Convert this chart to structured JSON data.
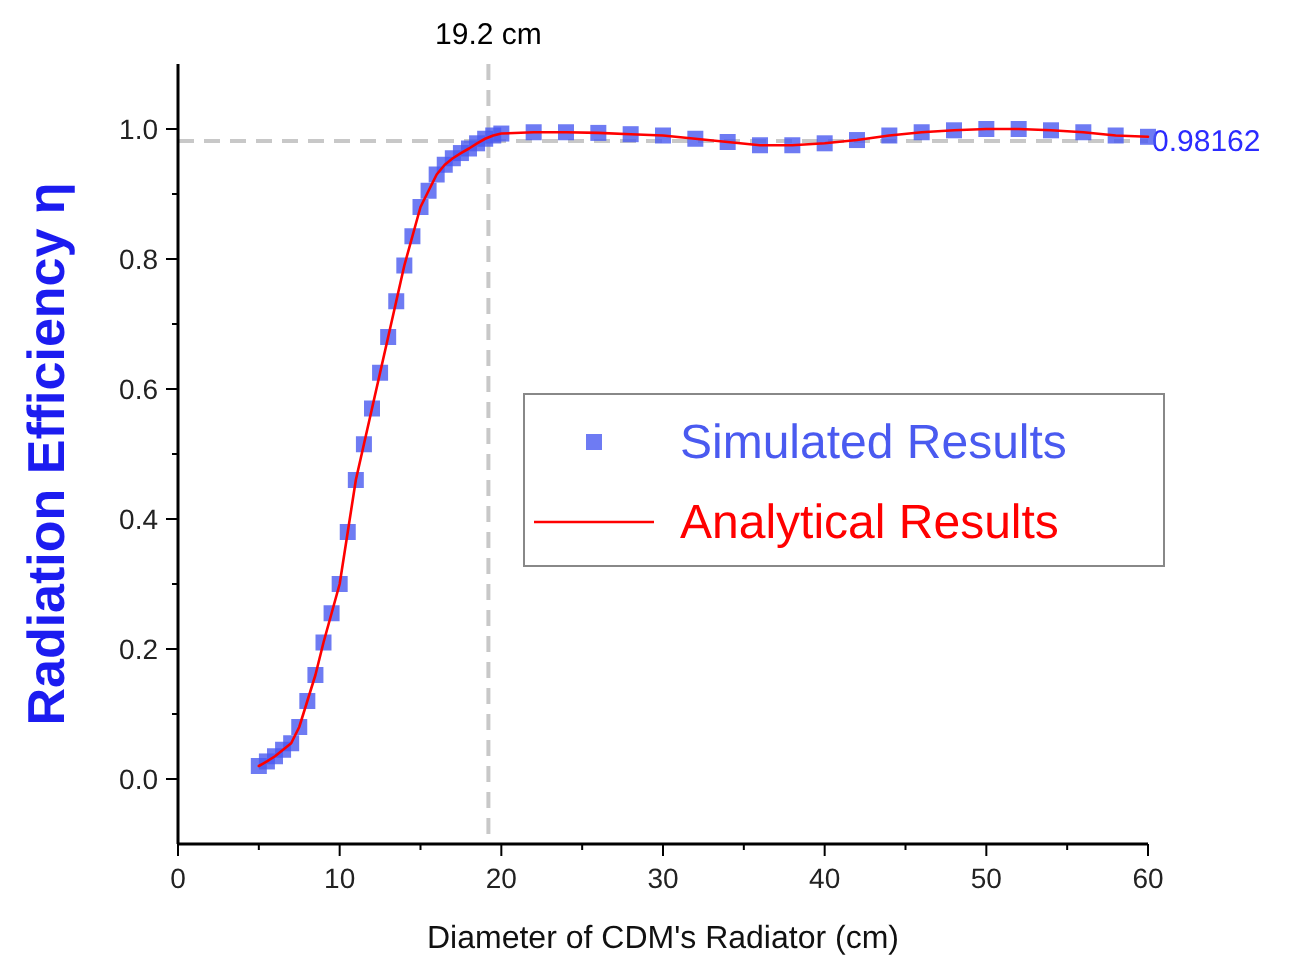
{
  "chart_data": {
    "type": "line",
    "xlabel": "Diameter of CDM's Radiator (cm)",
    "ylabel": "Radiation Efficiency η",
    "xlim": [
      0,
      60
    ],
    "ylim": [
      -0.1,
      1.1
    ],
    "xticks": [
      0,
      {
        "value": 5,
        "label": null
      },
      10,
      {
        "value": 15,
        "label": null
      },
      20,
      {
        "value": 25,
        "label": null
      },
      30,
      {
        "value": 35,
        "label": null
      },
      40,
      {
        "value": 45,
        "label": null
      },
      50,
      {
        "value": 55,
        "label": null
      },
      60
    ],
    "yticks": [
      {
        "value": 0,
        "label": "0.0"
      },
      {
        "value": 0.1,
        "label": null
      },
      {
        "value": 0.2,
        "label": "0.2"
      },
      {
        "value": 0.3,
        "label": null
      },
      {
        "value": 0.4,
        "label": "0.4"
      },
      {
        "value": 0.5,
        "label": null
      },
      {
        "value": 0.6,
        "label": "0.6"
      },
      {
        "value": 0.7,
        "label": null
      },
      {
        "value": 0.8,
        "label": "0.8"
      },
      {
        "value": 0.9,
        "label": null
      },
      {
        "value": 1,
        "label": "1.0"
      }
    ],
    "x": [
      5,
      5.5,
      6,
      6.5,
      7,
      7.5,
      8,
      8.5,
      9,
      9.5,
      10,
      10.5,
      11,
      11.5,
      12,
      12.5,
      13,
      13.5,
      14,
      14.5,
      15,
      15.5,
      16,
      16.5,
      17,
      17.5,
      18,
      18.5,
      19,
      19.5,
      20,
      22,
      24,
      26,
      28,
      30,
      32,
      34,
      36,
      38,
      40,
      42,
      44,
      46,
      48,
      50,
      52,
      54,
      56,
      58,
      60
    ],
    "series": [
      {
        "name": "Simulated Results",
        "type": "scatter",
        "marker": "square",
        "color": "#4a5af0",
        "values": [
          0.02,
          0.027,
          0.035,
          0.045,
          0.055,
          0.08,
          0.12,
          0.16,
          0.21,
          0.255,
          0.3,
          0.38,
          0.46,
          0.515,
          0.57,
          0.625,
          0.68,
          0.735,
          0.79,
          0.835,
          0.88,
          0.905,
          0.93,
          0.945,
          0.955,
          0.963,
          0.97,
          0.978,
          0.985,
          0.99,
          0.993,
          0.995,
          0.995,
          0.994,
          0.992,
          0.99,
          0.985,
          0.98,
          0.975,
          0.975,
          0.978,
          0.983,
          0.99,
          0.995,
          0.998,
          1,
          1,
          0.998,
          0.995,
          0.99,
          0.988
        ]
      },
      {
        "name": "Analytical Results",
        "color": "#ff0000",
        "values": [
          0.02,
          0.027,
          0.035,
          0.045,
          0.055,
          0.08,
          0.12,
          0.16,
          0.21,
          0.255,
          0.3,
          0.38,
          0.46,
          0.515,
          0.57,
          0.625,
          0.68,
          0.735,
          0.79,
          0.835,
          0.88,
          0.905,
          0.93,
          0.945,
          0.955,
          0.963,
          0.97,
          0.978,
          0.985,
          0.99,
          0.993,
          0.995,
          0.995,
          0.994,
          0.992,
          0.99,
          0.985,
          0.98,
          0.975,
          0.975,
          0.978,
          0.983,
          0.99,
          0.995,
          0.998,
          1,
          1,
          0.998,
          0.995,
          0.99,
          0.988
        ]
      }
    ],
    "ref_lines": [
      {
        "axis": "x",
        "value": 19.2,
        "label": "19.2 cm",
        "color": "#c8c8c8",
        "line_style": "dashed"
      },
      {
        "axis": "y",
        "value": 0.98162,
        "label": "0.98162",
        "color": "#c8c8c8",
        "line_style": "dashed"
      }
    ],
    "legend": "right",
    "grid": false
  }
}
